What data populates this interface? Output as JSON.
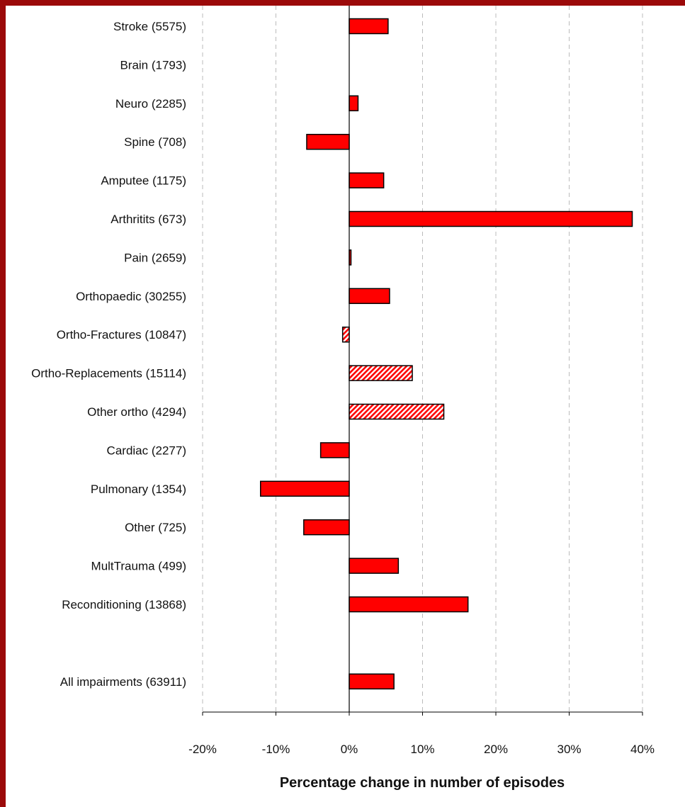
{
  "chart_data": {
    "type": "bar",
    "orientation": "horizontal",
    "title": "",
    "xlabel": "Percentage change in number of episodes",
    "ylabel": "",
    "xlim": [
      -20,
      40
    ],
    "xticks": [
      -20,
      -10,
      0,
      10,
      20,
      30,
      40
    ],
    "xtick_labels": [
      "-20%",
      "-10%",
      "0%",
      "10%",
      "20%",
      "30%",
      "40%"
    ],
    "grid": "vertical dashed",
    "legend": "none",
    "categories": [
      "Stroke (5575)",
      "Brain (1793)",
      "Neuro (2285)",
      "Spine (708)",
      "Amputee (1175)",
      "Arthritits (673)",
      "Pain (2659)",
      "Orthopaedic (30255)",
      "Ortho-Fractures (10847)",
      "Ortho-Replacements (15114)",
      "Other ortho (4294)",
      "Cardiac (2277)",
      "Pulmonary  (1354)",
      "Other (725)",
      "MultTrauma (499)",
      "Reconditioning (13868)",
      "",
      "All impairments (63911)"
    ],
    "values": [
      5.3,
      0,
      1.2,
      -5.8,
      4.7,
      38.6,
      0.2,
      5.5,
      -0.9,
      8.6,
      12.9,
      -3.9,
      -12.1,
      -6.2,
      6.7,
      16.2,
      null,
      6.1
    ],
    "styles": [
      "solid",
      "solid",
      "solid",
      "solid",
      "solid",
      "solid",
      "solid",
      "solid",
      "hatched",
      "hatched",
      "hatched",
      "solid",
      "solid",
      "solid",
      "solid",
      "solid",
      "none",
      "solid"
    ],
    "colors": {
      "bar": "#ff0000",
      "stroke": "#000000",
      "hatch_bg": "#ffffff",
      "grid": "#bbbbbb",
      "frame": "#9b0a0a"
    }
  }
}
